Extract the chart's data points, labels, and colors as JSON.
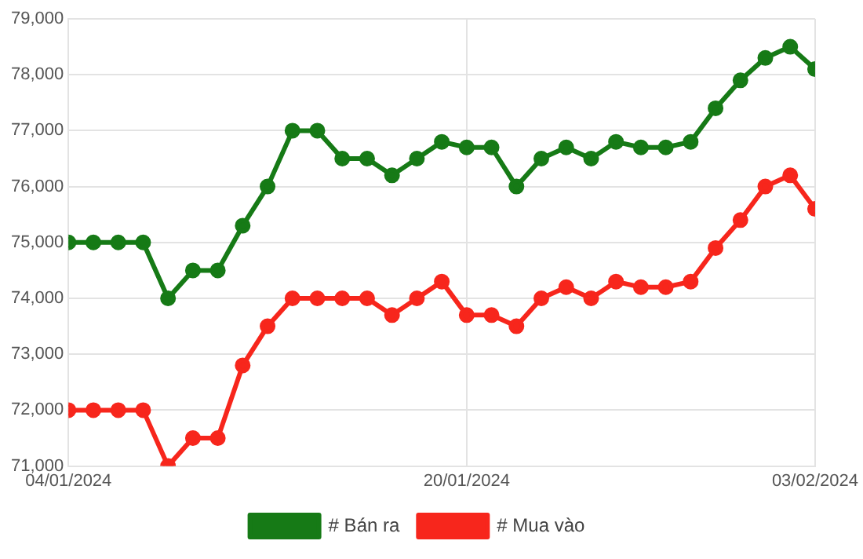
{
  "chart_data": {
    "type": "line",
    "x": [
      "2024-01-04",
      "2024-01-05",
      "2024-01-06",
      "2024-01-07",
      "2024-01-08",
      "2024-01-09",
      "2024-01-10",
      "2024-01-11",
      "2024-01-12",
      "2024-01-13",
      "2024-01-14",
      "2024-01-15",
      "2024-01-16",
      "2024-01-17",
      "2024-01-18",
      "2024-01-19",
      "2024-01-20",
      "2024-01-21",
      "2024-01-22",
      "2024-01-23",
      "2024-01-24",
      "2024-01-25",
      "2024-01-26",
      "2024-01-27",
      "2024-01-28",
      "2024-01-29",
      "2024-01-30",
      "2024-01-31",
      "2024-02-01",
      "2024-02-02",
      "2024-02-03"
    ],
    "series": [
      {
        "name": "# Bán ra",
        "color": "#167a16",
        "values": [
          75000,
          75000,
          75000,
          75000,
          74000,
          74500,
          74500,
          75300,
          76000,
          77000,
          77000,
          76500,
          76500,
          76200,
          76500,
          76800,
          76700,
          76700,
          76000,
          76500,
          76700,
          76500,
          76800,
          76700,
          76700,
          76800,
          77400,
          77900,
          78300,
          78500,
          78100
        ]
      },
      {
        "name": "# Mua vào",
        "color": "#f7261c",
        "values": [
          72000,
          72000,
          72000,
          72000,
          71000,
          71500,
          71500,
          72800,
          73500,
          74000,
          74000,
          74000,
          74000,
          73700,
          74000,
          74300,
          73700,
          73700,
          73500,
          74000,
          74200,
          74000,
          74300,
          74200,
          74200,
          74300,
          74900,
          75400,
          76000,
          76200,
          75600
        ]
      }
    ],
    "xlim": [
      "2024-01-04",
      "2024-02-03"
    ],
    "xticks": [
      {
        "value": "2024-01-04",
        "label": "04/01/2024"
      },
      {
        "value": "2024-01-20",
        "label": "20/01/2024"
      },
      {
        "value": "2024-02-03",
        "label": "03/02/2024"
      }
    ],
    "ylim": [
      71000,
      79000
    ],
    "yticks": [
      {
        "value": 71000,
        "label": "71,000"
      },
      {
        "value": 72000,
        "label": "72,000"
      },
      {
        "value": 73000,
        "label": "73,000"
      },
      {
        "value": 74000,
        "label": "74,000"
      },
      {
        "value": 75000,
        "label": "75,000"
      },
      {
        "value": 76000,
        "label": "76,000"
      },
      {
        "value": 77000,
        "label": "77,000"
      },
      {
        "value": 78000,
        "label": "78,000"
      },
      {
        "value": 79000,
        "label": "79,000"
      }
    ],
    "grid": true,
    "legend": "bottom",
    "marker": "circle",
    "line_style": "solid"
  }
}
